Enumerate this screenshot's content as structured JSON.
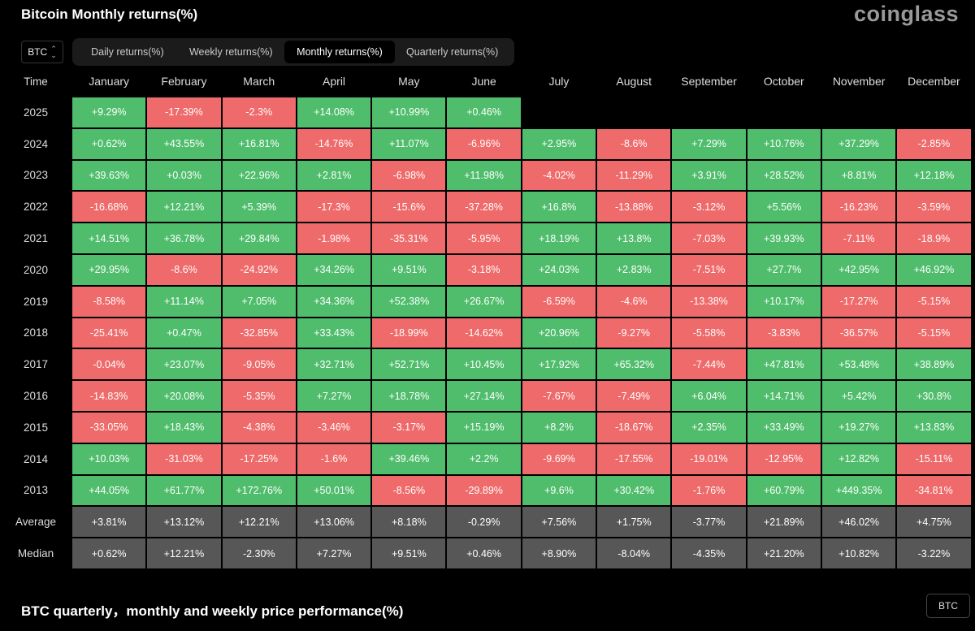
{
  "header": {
    "title": "Bitcoin Monthly returns(%)",
    "brand": "coinglass"
  },
  "controls": {
    "coin": "BTC",
    "tabs": [
      {
        "label": "Daily returns(%)",
        "active": false
      },
      {
        "label": "Weekly returns(%)",
        "active": false
      },
      {
        "label": "Monthly returns(%)",
        "active": true
      },
      {
        "label": "Quarterly returns(%)",
        "active": false
      }
    ]
  },
  "colors": {
    "positive": "#4fbd6c",
    "negative": "#ef6a6a",
    "summary": "#575757",
    "background": "#000000"
  },
  "chart_data": {
    "type": "table",
    "title": "Bitcoin Monthly returns(%)",
    "row_header_label": "Time",
    "columns": [
      "January",
      "February",
      "March",
      "April",
      "May",
      "June",
      "July",
      "August",
      "September",
      "October",
      "November",
      "December"
    ],
    "rows": [
      {
        "label": "2025",
        "values": [
          "+9.29%",
          "-17.39%",
          "-2.3%",
          "+14.08%",
          "+10.99%",
          "+0.46%",
          "",
          "",
          "",
          "",
          "",
          ""
        ]
      },
      {
        "label": "2024",
        "values": [
          "+0.62%",
          "+43.55%",
          "+16.81%",
          "-14.76%",
          "+11.07%",
          "-6.96%",
          "+2.95%",
          "-8.6%",
          "+7.29%",
          "+10.76%",
          "+37.29%",
          "-2.85%"
        ]
      },
      {
        "label": "2023",
        "values": [
          "+39.63%",
          "+0.03%",
          "+22.96%",
          "+2.81%",
          "-6.98%",
          "+11.98%",
          "-4.02%",
          "-11.29%",
          "+3.91%",
          "+28.52%",
          "+8.81%",
          "+12.18%"
        ]
      },
      {
        "label": "2022",
        "values": [
          "-16.68%",
          "+12.21%",
          "+5.39%",
          "-17.3%",
          "-15.6%",
          "-37.28%",
          "+16.8%",
          "-13.88%",
          "-3.12%",
          "+5.56%",
          "-16.23%",
          "-3.59%"
        ]
      },
      {
        "label": "2021",
        "values": [
          "+14.51%",
          "+36.78%",
          "+29.84%",
          "-1.98%",
          "-35.31%",
          "-5.95%",
          "+18.19%",
          "+13.8%",
          "-7.03%",
          "+39.93%",
          "-7.11%",
          "-18.9%"
        ]
      },
      {
        "label": "2020",
        "values": [
          "+29.95%",
          "-8.6%",
          "-24.92%",
          "+34.26%",
          "+9.51%",
          "-3.18%",
          "+24.03%",
          "+2.83%",
          "-7.51%",
          "+27.7%",
          "+42.95%",
          "+46.92%"
        ]
      },
      {
        "label": "2019",
        "values": [
          "-8.58%",
          "+11.14%",
          "+7.05%",
          "+34.36%",
          "+52.38%",
          "+26.67%",
          "-6.59%",
          "-4.6%",
          "-13.38%",
          "+10.17%",
          "-17.27%",
          "-5.15%"
        ]
      },
      {
        "label": "2018",
        "values": [
          "-25.41%",
          "+0.47%",
          "-32.85%",
          "+33.43%",
          "-18.99%",
          "-14.62%",
          "+20.96%",
          "-9.27%",
          "-5.58%",
          "-3.83%",
          "-36.57%",
          "-5.15%"
        ]
      },
      {
        "label": "2017",
        "values": [
          "-0.04%",
          "+23.07%",
          "-9.05%",
          "+32.71%",
          "+52.71%",
          "+10.45%",
          "+17.92%",
          "+65.32%",
          "-7.44%",
          "+47.81%",
          "+53.48%",
          "+38.89%"
        ]
      },
      {
        "label": "2016",
        "values": [
          "-14.83%",
          "+20.08%",
          "-5.35%",
          "+7.27%",
          "+18.78%",
          "+27.14%",
          "-7.67%",
          "-7.49%",
          "+6.04%",
          "+14.71%",
          "+5.42%",
          "+30.8%"
        ]
      },
      {
        "label": "2015",
        "values": [
          "-33.05%",
          "+18.43%",
          "-4.38%",
          "-3.46%",
          "-3.17%",
          "+15.19%",
          "+8.2%",
          "-18.67%",
          "+2.35%",
          "+33.49%",
          "+19.27%",
          "+13.83%"
        ]
      },
      {
        "label": "2014",
        "values": [
          "+10.03%",
          "-31.03%",
          "-17.25%",
          "-1.6%",
          "+39.46%",
          "+2.2%",
          "-9.69%",
          "-17.55%",
          "-19.01%",
          "-12.95%",
          "+12.82%",
          "-15.11%"
        ]
      },
      {
        "label": "2013",
        "values": [
          "+44.05%",
          "+61.77%",
          "+172.76%",
          "+50.01%",
          "-8.56%",
          "-29.89%",
          "+9.6%",
          "+30.42%",
          "-1.76%",
          "+60.79%",
          "+449.35%",
          "-34.81%"
        ]
      }
    ],
    "summary_rows": [
      {
        "label": "Average",
        "values": [
          "+3.81%",
          "+13.12%",
          "+12.21%",
          "+13.06%",
          "+8.18%",
          "-0.29%",
          "+7.56%",
          "+1.75%",
          "-3.77%",
          "+21.89%",
          "+46.02%",
          "+4.75%"
        ]
      },
      {
        "label": "Median",
        "values": [
          "+0.62%",
          "+12.21%",
          "-2.30%",
          "+7.27%",
          "+9.51%",
          "+0.46%",
          "+8.90%",
          "-8.04%",
          "-4.35%",
          "+21.20%",
          "+10.82%",
          "-3.22%"
        ]
      }
    ]
  },
  "footer": {
    "title": "BTC quarterly，monthly and weekly price performance(%)",
    "coin_button": "BTC"
  }
}
